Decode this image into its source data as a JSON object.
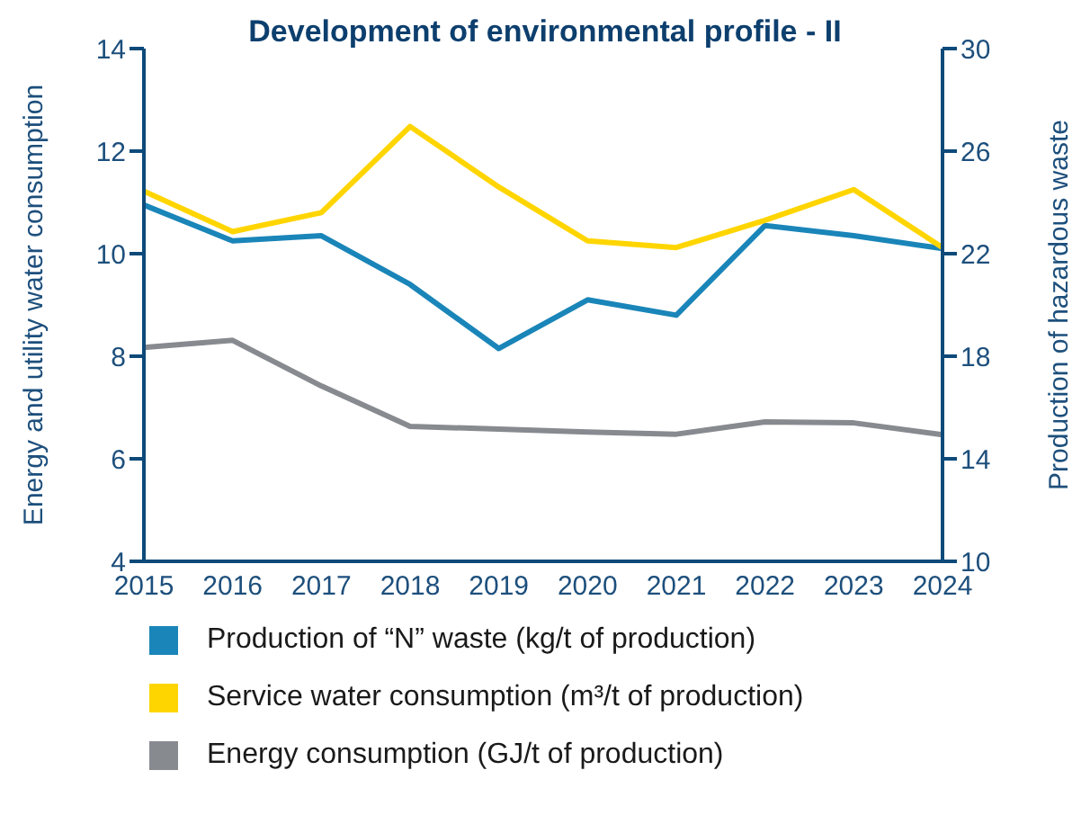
{
  "chart_data": {
    "type": "line",
    "title": "Development of environmental profile - II",
    "ylabel": "Energy and utility water consumption",
    "y2label": "Production of hazardous waste",
    "categories": [
      "2015",
      "2016",
      "2017",
      "2018",
      "2019",
      "2020",
      "2021",
      "2022",
      "2023",
      "2024"
    ],
    "series": [
      {
        "name": "Production of “N” waste (kg/t of production)",
        "color": "#1a85b8",
        "axis": "y2",
        "values": [
          23.9,
          22.5,
          22.7,
          20.8,
          18.3,
          20.2,
          19.6,
          23.1,
          22.7,
          22.2
        ]
      },
      {
        "name": "Service water consumption (m³/t of production)",
        "color": "#ffd500",
        "values": [
          11.22,
          10.43,
          10.8,
          12.48,
          11.3,
          10.25,
          10.12,
          10.65,
          11.25,
          10.12
        ]
      },
      {
        "name": "Energy consumption (GJ/t of production)",
        "color": "#878a8f",
        "values": [
          8.17,
          8.31,
          7.42,
          6.63,
          6.58,
          6.52,
          6.48,
          6.72,
          6.7,
          6.47
        ]
      }
    ],
    "ylim": [
      4,
      14
    ],
    "yticks": [
      4,
      6,
      8,
      10,
      12,
      14
    ],
    "y2lim": [
      10,
      30
    ],
    "y2ticks": [
      10,
      14,
      18,
      22,
      26,
      30
    ],
    "legend": "bottom",
    "marker": "none",
    "line_style": "solid"
  }
}
